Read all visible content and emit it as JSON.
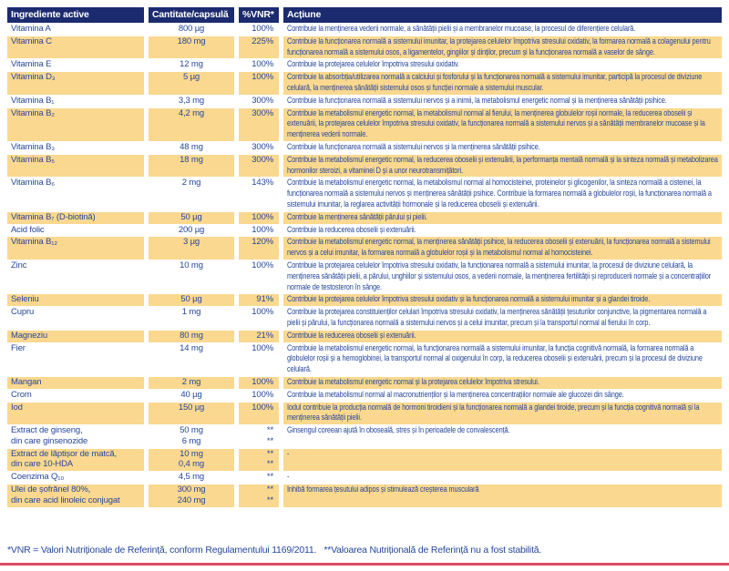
{
  "colors": {
    "header_bg": "#1c2b6f",
    "text_blue": "#26479a",
    "row_highlight": "#fad88f",
    "bottom_rule": "#dc4a5f"
  },
  "footnote": "*VNR = Valori Nutriționale de Referință, conform Regulamentului 1169/2011.   **Valoarea Nutrițională de Referință nu a fost stabilită.",
  "table": {
    "columns": [
      "Ingrediente active",
      "Cantitate/capsulă",
      "%VNR*",
      "Acțiune"
    ],
    "rows": [
      {
        "name": [
          "Vitamina A"
        ],
        "qty": [
          "800 µg"
        ],
        "vnr": [
          "100%"
        ],
        "action": "Contribuie la menținerea vederii normale, a sănătății pielii și a membranelor mucoase, la procesul de diferențiere celulară."
      },
      {
        "name": [
          "Vitamina C"
        ],
        "qty": [
          "180 mg"
        ],
        "vnr": [
          "225%"
        ],
        "action": "Contribuie la funcționarea normală a sistemului imunitar, la protejarea celulelor împotriva stresului oxidativ, la formarea normală a colagenului pentru funcționarea normală a sistemului osos, a ligamentelor, gingiilor și dinților, precum și la funcționarea normală a vaselor de sânge."
      },
      {
        "name": [
          "Vitamina E"
        ],
        "qty": [
          "12 mg"
        ],
        "vnr": [
          "100%"
        ],
        "action": "Contribuie la protejarea celulelor împotriva stresului oxidativ."
      },
      {
        "name": [
          "Vitamina D₃"
        ],
        "qty": [
          "5 µg"
        ],
        "vnr": [
          "100%"
        ],
        "action": "Contribuie la absorbția/utilizarea normală a calciului și fosforului și la funcționarea normală a sistemului imunitar, participă la procesul de diviziune celulară, la menținerea sănătății sistemului osos și funcției normale a sistemului muscular."
      },
      {
        "name": [
          "Vitamina B₁"
        ],
        "qty": [
          "3,3 mg"
        ],
        "vnr": [
          "300%"
        ],
        "action": "Contribuie la funcționarea normală a sistemului nervos și a inimii, la metabolismul energetic normal și la menținerea sănătății psihice."
      },
      {
        "name": [
          "Vitamina B₂"
        ],
        "qty": [
          "4,2 mg"
        ],
        "vnr": [
          "300%"
        ],
        "action": "Contribuie la metabolismul energetic normal, la metabolismul normal al fierului, la menținerea globulelor roșii normale, la reducerea oboselii și extenuării, la protejarea celulelor împotriva stresului oxidativ, la funcționarea normală a sistemului nervos și a sănătății membranelor mucoase și la menținerea vederii normale."
      },
      {
        "name": [
          "Vitamina B₃"
        ],
        "qty": [
          "48 mg"
        ],
        "vnr": [
          "300%"
        ],
        "action": "Contribuie la funcționarea normală a sistemului nervos și la menținerea sănătății psihice."
      },
      {
        "name": [
          "Vitamina B₅"
        ],
        "qty": [
          "18 mg"
        ],
        "vnr": [
          "300%"
        ],
        "action": "Contribuie la metabolismul energetic normal, la reducerea oboselii și extenuării, la performanța mentală normală și la sinteza normală și metabolizarea hormonilor steroizi, a vitaminei D și a unor neurotransmițători."
      },
      {
        "name": [
          "Vitamina B₆"
        ],
        "qty": [
          "2 mg"
        ],
        "vnr": [
          "143%"
        ],
        "action": "Contribuie la metabolismul energetic normal, la metabolismul normal al homocisteinei, proteinelor și glicogenilor, la sinteza normală a cisteinei, la funcționarea normală a sistemului nervos și menținerea sănătății psihice. Contribuie la formarea normală a globulelor roșii, la funcționarea normală a sistemului imunitar, la reglarea activității hormonale și la reducerea oboselii și extenuării."
      },
      {
        "name": [
          "Vitamina B₇ (D-biotină)"
        ],
        "qty": [
          "50 µg"
        ],
        "vnr": [
          "100%"
        ],
        "action": "Contribuie la menținerea sănătății părului și pielii."
      },
      {
        "name": [
          "Acid folic"
        ],
        "qty": [
          "200 µg"
        ],
        "vnr": [
          "100%"
        ],
        "action": "Contribuie la reducerea oboselii și extenuării."
      },
      {
        "name": [
          "Vitamina B₁₂"
        ],
        "qty": [
          "3 µg"
        ],
        "vnr": [
          "120%"
        ],
        "action": "Contribuie la metabolismul energetic normal, la menținerea sănătății psihice, la reducerea oboselii și extenuării, la funcționarea normală a sistemului nervos și a celui imunitar, la formarea normală a globulelor roșii și la metabolismul normal al homocisteinei."
      },
      {
        "name": [
          "Zinc"
        ],
        "qty": [
          "10 mg"
        ],
        "vnr": [
          "100%"
        ],
        "action": "Contribuie la protejarea celulelor împotriva stresului oxidativ, la funcționarea normală a sistemului imunitar, la procesul de diviziune celulară, la menținerea sănătății pielii, a părului, unghiilor și sistemului osos, a vederii normale, la menținerea fertilității și reproducerii normale și a concentrațiilor normale de testosteron în sânge."
      },
      {
        "name": [
          "Seleniu"
        ],
        "qty": [
          "50 µg"
        ],
        "vnr": [
          "91%"
        ],
        "action": "Contribuie la protejarea celulelor împotriva stresului oxidativ și la funcționarea normală a sistemului imunitar și a glandei tiroide."
      },
      {
        "name": [
          "Cupru"
        ],
        "qty": [
          "1 mg"
        ],
        "vnr": [
          "100%"
        ],
        "action": "Contribuie la protejarea constituienților celulari împotriva stresului oxidativ, la menținerea sănătății țesuturilor conjunctive, la pigmentarea normală a pielii și părului, la funcționarea normală a sistemului nervos și a celui imunitar, precum și la transportul normal al fierului în corp."
      },
      {
        "name": [
          "Magneziu"
        ],
        "qty": [
          "80 mg"
        ],
        "vnr": [
          "21%"
        ],
        "action": "Contribuie la reducerea oboselii și extenuării."
      },
      {
        "name": [
          "Fier"
        ],
        "qty": [
          "14 mg"
        ],
        "vnr": [
          "100%"
        ],
        "action": "Contribuie la metabolismul energetic normal, la funcționarea normală a sistemului imunitar, la funcția cognitivă normală, la formarea normală a globulelor roșii și a hemoglobinei, la transportul normal al oxigenului în corp, la reducerea oboselii și extenuării, precum și la procesul de diviziune celulară."
      },
      {
        "name": [
          "Mangan"
        ],
        "qty": [
          "2 mg"
        ],
        "vnr": [
          "100%"
        ],
        "action": "Contribuie la metabolismul energetic normal și la protejarea celulelor împotriva stresului."
      },
      {
        "name": [
          "Crom"
        ],
        "qty": [
          "40 µg"
        ],
        "vnr": [
          "100%"
        ],
        "action": "Contribuie la metabolismul normal al macronutrienților și la menținerea concentrațiilor normale ale glucozei din sânge."
      },
      {
        "name": [
          "Iod"
        ],
        "qty": [
          "150 µg"
        ],
        "vnr": [
          "100%"
        ],
        "action": "Iodul contribuie la producția normală de hormoni tiroidieni și la funcționarea normală a glandei tiroide, precum și la funcția cognitivă normală și la menținerea sănătății pielii."
      },
      {
        "name": [
          "Extract de ginseng,",
          "din care ginsenozide"
        ],
        "qty": [
          "50 mg",
          "6 mg"
        ],
        "vnr": [
          "**",
          "**"
        ],
        "action": "Ginsengul coreean ajută în oboseală, stres și în perioadele de convalescență."
      },
      {
        "name": [
          "Extract de lăptișor de matcă,",
          "din care 10-HDA"
        ],
        "qty": [
          "10 mg",
          "0,4 mg"
        ],
        "vnr": [
          "**",
          "**"
        ],
        "action": "-"
      },
      {
        "name": [
          "Coenzima Q₁₀"
        ],
        "qty": [
          "4,5 mg"
        ],
        "vnr": [
          "**"
        ],
        "action": "-"
      },
      {
        "name": [
          "Ulei de șofrănel 80%,",
          "din care acid linoleic conjugat"
        ],
        "qty": [
          "300 mg",
          "240 mg"
        ],
        "vnr": [
          "**",
          "**"
        ],
        "action": "Inhibă formarea țesutului adipos și stimulează creșterea musculară"
      }
    ]
  }
}
